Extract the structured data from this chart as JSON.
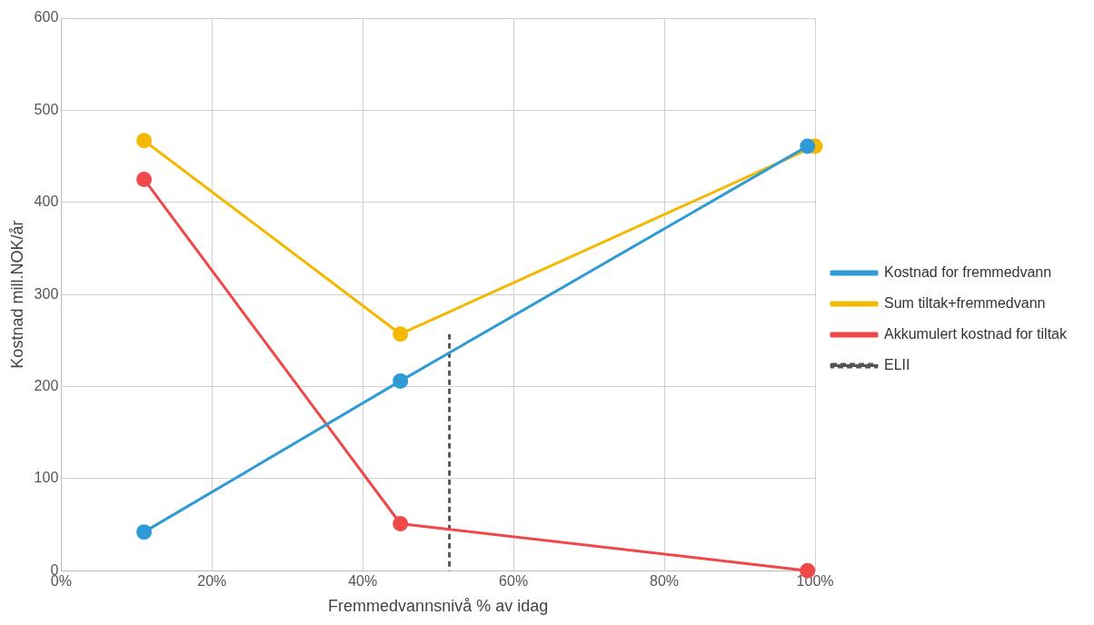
{
  "chart_data": {
    "type": "line",
    "xlabel": "Fremmedvannsnivå % av idag",
    "ylabel": "Kostnad mill.NOK/år",
    "xlim": [
      0,
      100
    ],
    "xticks": [
      {
        "value": 0,
        "label": "0%"
      },
      {
        "value": 20,
        "label": "20%"
      },
      {
        "value": 40,
        "label": "40%"
      },
      {
        "value": 60,
        "label": "60%"
      },
      {
        "value": 80,
        "label": "80%"
      },
      {
        "value": 100,
        "label": "100%"
      }
    ],
    "ylim": [
      0,
      600
    ],
    "yticks": [
      0,
      100,
      200,
      300,
      400,
      500,
      600
    ],
    "grid": true,
    "legend": "right",
    "marker": "circle",
    "series": [
      {
        "name": "Kostnad for fremmedvann",
        "color": "#2e9bd6",
        "x": [
          11,
          45,
          99
        ],
        "values": [
          42,
          206,
          461
        ]
      },
      {
        "name": "Sum tiltak+fremmedvann",
        "color": "#f5b800",
        "x": [
          11,
          45,
          100
        ],
        "values": [
          467,
          257,
          461
        ]
      },
      {
        "name": "Akkumulert kostnad for tiltak",
        "color": "#f04848",
        "x": [
          11,
          45,
          99
        ],
        "values": [
          425,
          51,
          0
        ]
      },
      {
        "name": "ELII",
        "color": "#555555",
        "x": [
          51.5,
          51.5
        ],
        "values": [
          257,
          0
        ],
        "line_style": "dashed",
        "marker": "none"
      }
    ]
  }
}
